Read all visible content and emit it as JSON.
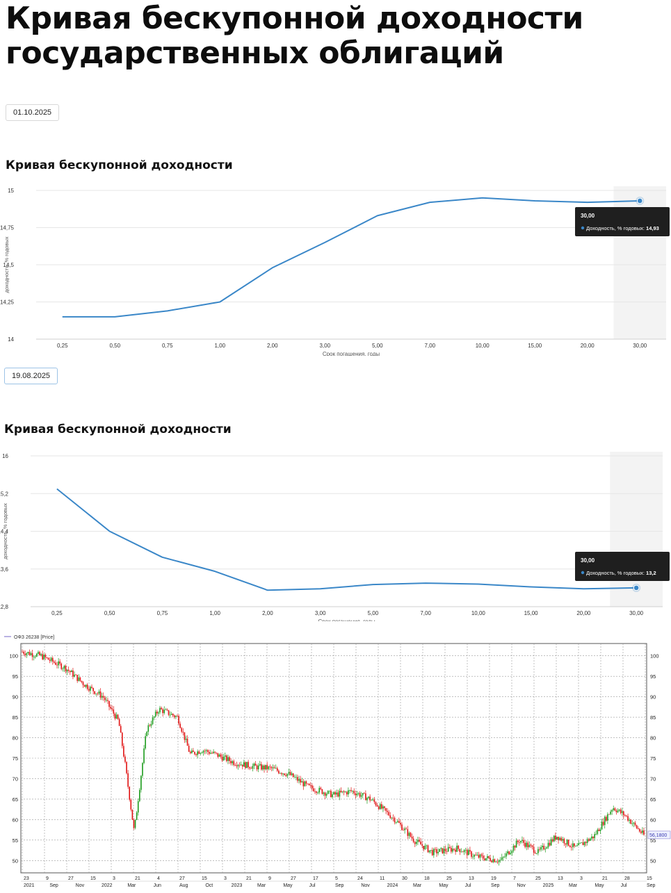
{
  "page": {
    "title": "Кривая бескупонной доходности государственных облигаций"
  },
  "colors": {
    "accent": "#3a87c8",
    "tooltip_bg": "#1f1f1f",
    "hover_band": "#f3f3f3",
    "candle_up": "#1a9a1a",
    "candle_down": "#e01010"
  },
  "curves": [
    {
      "date": "01.10.2025",
      "section_title": "Кривая бескупонной доходности",
      "tooltip": {
        "title": "30,00",
        "label": "Доходность, % годовых:",
        "value": "14,93"
      }
    },
    {
      "date": "19.08.2025",
      "section_title": "Кривая бескупонной доходности",
      "tooltip": {
        "title": "30,00",
        "label": "Доходность, % годовых:",
        "value": "13,2"
      }
    }
  ],
  "chart_data": [
    {
      "type": "line",
      "title": "Кривая бескупонной доходности",
      "xlabel": "Срок погашения, годы",
      "ylabel": "доходность, % годовых",
      "categories": [
        "0,25",
        "0,50",
        "0,75",
        "1,00",
        "2,00",
        "3,00",
        "5,00",
        "7,00",
        "10,00",
        "15,00",
        "20,00",
        "30,00"
      ],
      "values": [
        14.15,
        14.15,
        14.19,
        14.25,
        14.48,
        14.65,
        14.83,
        14.92,
        14.95,
        14.93,
        14.92,
        14.93
      ],
      "ylim": [
        14,
        15
      ],
      "yticks": [
        14,
        14.25,
        14.5,
        14.75,
        15
      ],
      "ytick_labels": [
        "14",
        "14,25",
        "14,5",
        "14,75",
        "15"
      ],
      "grid": true,
      "highlight_index": 11
    },
    {
      "type": "line",
      "title": "Кривая бескупонной доходности",
      "xlabel": "Срок погашения, годы",
      "ylabel": "доходность, % годовых",
      "categories": [
        "0,25",
        "0,50",
        "0,75",
        "1,00",
        "2,00",
        "3,00",
        "5,00",
        "7,00",
        "10,00",
        "15,00",
        "20,00",
        "30,00"
      ],
      "values": [
        15.3,
        14.4,
        13.85,
        13.55,
        13.15,
        13.18,
        13.27,
        13.3,
        13.28,
        13.22,
        13.18,
        13.2
      ],
      "ylim": [
        12.8,
        16
      ],
      "yticks": [
        12.8,
        13.6,
        14.4,
        15.2,
        16
      ],
      "ytick_labels": [
        "12,8",
        "13,6",
        "14,4",
        "15,2",
        "16"
      ],
      "grid": true,
      "highlight_index": 11
    },
    {
      "type": "line",
      "legend": "ОФЗ 26238 [Price]",
      "last_value_label": "56,1800",
      "ylim": [
        47,
        103
      ],
      "yticks": [
        50,
        55,
        60,
        65,
        70,
        75,
        80,
        85,
        90,
        95,
        100
      ],
      "x_day_labels": [
        "23",
        "9",
        "27",
        "15",
        "3",
        "21",
        "4",
        "27",
        "15",
        "3",
        "21",
        "9",
        "27",
        "17",
        "5",
        "24",
        "11",
        "30",
        "18",
        "25",
        "13",
        "19",
        "7",
        "25",
        "13",
        "3",
        "21",
        "28",
        "15"
      ],
      "x_month_labels": [
        "2021",
        "Sep",
        "Nov",
        "2022",
        "Mar",
        "Jun",
        "Aug",
        "Oct",
        "2023",
        "Mar",
        "May",
        "Jul",
        "Sep",
        "Nov",
        "2024",
        "Mar",
        "May",
        "Jul",
        "Sep",
        "Nov",
        "2025",
        "Mar",
        "May",
        "Jul",
        "Sep"
      ],
      "series": [
        {
          "name": "ОФЗ 26238 [Price]",
          "x": [
            0,
            0.03,
            0.07,
            0.1,
            0.13,
            0.155,
            0.165,
            0.18,
            0.2,
            0.22,
            0.25,
            0.27,
            0.29,
            0.31,
            0.34,
            0.37,
            0.4,
            0.43,
            0.46,
            0.5,
            0.53,
            0.56,
            0.6,
            0.63,
            0.66,
            0.7,
            0.73,
            0.77,
            0.8,
            0.83,
            0.86,
            0.89,
            0.92,
            0.95,
            0.97,
            1.0
          ],
          "y": [
            101,
            100,
            97,
            93,
            90,
            84,
            74,
            57,
            82,
            87,
            85,
            76,
            77,
            76,
            74,
            73,
            72.5,
            71,
            68,
            66,
            67,
            65,
            60,
            55,
            52,
            53,
            51,
            50,
            55,
            52,
            56,
            53,
            56,
            63,
            61,
            56.18
          ]
        }
      ]
    }
  ]
}
